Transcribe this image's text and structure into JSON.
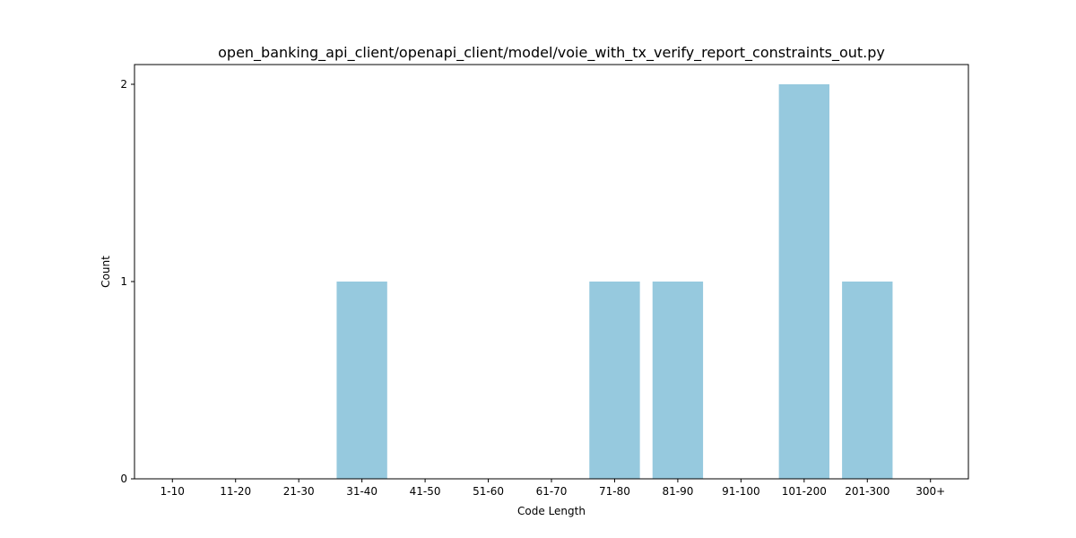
{
  "chart_data": {
    "type": "bar",
    "title": "open_banking_api_client/openapi_client/model/voie_with_tx_verify_report_constraints_out.py",
    "xlabel": "Code Length",
    "ylabel": "Count",
    "categories": [
      "1-10",
      "11-20",
      "21-30",
      "31-40",
      "41-50",
      "51-60",
      "61-70",
      "71-80",
      "81-90",
      "91-100",
      "101-200",
      "201-300",
      "300+"
    ],
    "values": [
      0,
      0,
      0,
      1,
      0,
      0,
      0,
      1,
      1,
      0,
      2,
      1,
      0
    ],
    "ylim": [
      0,
      2.1
    ],
    "yticks": [
      0,
      1,
      2
    ],
    "grid": false,
    "bar_color": "#96c9de"
  }
}
